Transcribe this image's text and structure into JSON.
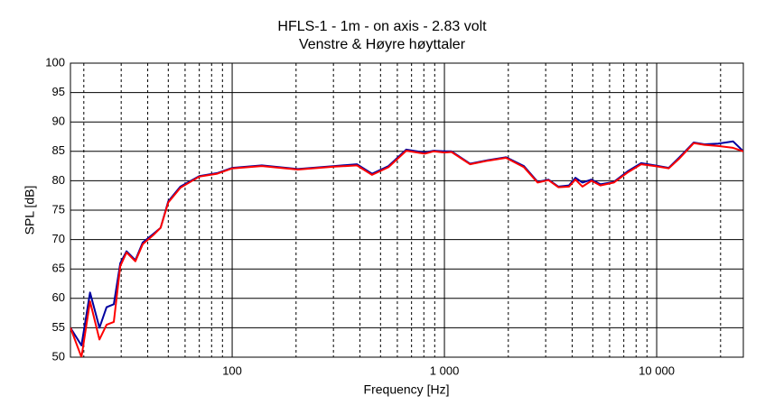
{
  "chart_data": {
    "type": "line",
    "title": "HFLS-1 - 1m - on axis - 2.83 volt",
    "subtitle": "Venstre & Høyre høyttaler",
    "xlabel": "Frequency [Hz]",
    "ylabel": "SPL [dB]",
    "log_x": true,
    "grid": true,
    "xlim": [
      17.3,
      25600
    ],
    "ylim": [
      50,
      100
    ],
    "xticks": [
      100,
      {
        "value": 1000,
        "label": "1 000"
      },
      {
        "value": 10000,
        "label": "10 000"
      }
    ],
    "xminorticks": [
      20,
      30,
      40,
      50,
      60,
      70,
      80,
      90,
      200,
      300,
      400,
      500,
      600,
      700,
      800,
      900,
      2000,
      3000,
      4000,
      5000,
      6000,
      7000,
      8000,
      9000,
      20000
    ],
    "yticks": [
      50,
      55,
      60,
      65,
      70,
      75,
      80,
      85,
      90,
      95,
      100
    ],
    "x": [
      17.3,
      19.5,
      21.4,
      23.7,
      25.6,
      27.7,
      29.7,
      31.8,
      35,
      37.9,
      42.6,
      46,
      50,
      57,
      70,
      85,
      100,
      138,
      204,
      303,
      387,
      456,
      545,
      661,
      806,
      889,
      1000,
      1080,
      1320,
      1600,
      1950,
      2370,
      2750,
      3090,
      3440,
      3860,
      4140,
      4470,
      4930,
      5430,
      6280,
      7290,
      8450,
      9800,
      11400,
      12800,
      14950,
      16800,
      19500,
      22900,
      25600
    ],
    "series": [
      {
        "color": "#0000a0",
        "values": [
          55,
          52,
          61,
          55,
          58.5,
          59,
          66,
          68,
          66.5,
          69.5,
          71,
          72,
          76.5,
          79,
          80.8,
          81.3,
          82.2,
          82.6,
          82,
          82.5,
          82.8,
          81.2,
          82.5,
          85.3,
          84.8,
          85.1,
          85,
          85,
          82.9,
          83.5,
          84,
          82.5,
          79.8,
          80.2,
          79,
          79.2,
          80.5,
          79.7,
          80.2,
          79.4,
          79.8,
          81.6,
          83,
          82.6,
          82.2,
          84,
          86.5,
          86.2,
          86.3,
          86.7,
          85
        ]
      },
      {
        "color": "#ff0000",
        "values": [
          55,
          50,
          59.5,
          53,
          55.5,
          56,
          65.5,
          67.8,
          66.3,
          69.2,
          70.8,
          72,
          76.3,
          78.8,
          80.7,
          81.2,
          82.1,
          82.5,
          81.9,
          82.4,
          82.6,
          81,
          82.3,
          85.1,
          84.6,
          85,
          84.8,
          84.9,
          82.8,
          83.4,
          83.9,
          82.3,
          79.7,
          80.1,
          78.9,
          79,
          80.2,
          79,
          80,
          79.2,
          79.7,
          81.4,
          82.8,
          82.5,
          82.1,
          83.8,
          86.4,
          86.1,
          85.9,
          85.6,
          85
        ]
      }
    ]
  }
}
